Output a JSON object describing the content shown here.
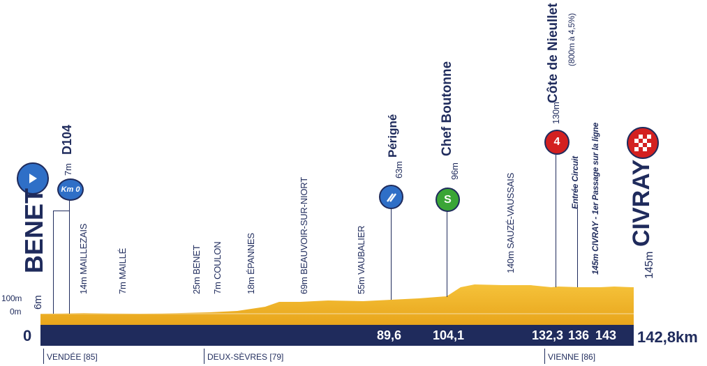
{
  "start": {
    "name": "BENET",
    "altitude": "6m"
  },
  "finish": {
    "name": "CIVRAY",
    "altitude": "145m"
  },
  "km_zero": {
    "label": "Km 0",
    "road": "D104",
    "altitude": "7m"
  },
  "altitude_scale": {
    "top": "100m",
    "bottom": "0m"
  },
  "places": [
    {
      "label": "14m MAILLEZAIS"
    },
    {
      "label": "7m MAILLÉ"
    },
    {
      "label": "25m BENET"
    },
    {
      "label": "7m COULON"
    },
    {
      "label": "18m ÉPANNES"
    },
    {
      "label": "69m BEAUVOIR-SUR-NIORT"
    },
    {
      "label": "55m VAUBALIER"
    },
    {
      "label": "140m SAUZÉ-VAUSSAIS"
    },
    {
      "label": "145m CIVRAY - 1er Passage sur la ligne"
    }
  ],
  "points": {
    "perigne": {
      "alt": "63m",
      "name": "Périgné",
      "km": "89,6"
    },
    "chef": {
      "alt": "96m",
      "name": "Chef Boutonne",
      "km": "104,1",
      "badge": "S"
    },
    "cote": {
      "alt": "130m",
      "name": "Côte de Nieullet",
      "detail": "(800m à 4,5%)",
      "km": "132,3",
      "badge": "4"
    },
    "circuit": {
      "label": "Entrée Circuit",
      "km": "136"
    },
    "passage": {
      "km": "143"
    }
  },
  "axis": {
    "zero": "0",
    "total": "142,8km"
  },
  "departments": [
    "VENDÉE [85]",
    "DEUX-SÈVRES [79]",
    "VIENNE [86]"
  ],
  "colors": {
    "navy": "#1f2b5c",
    "profile": "#f2b62a",
    "blue_badge": "#2f6fc7",
    "sprint": "#3aa536",
    "climb": "#d32020"
  }
}
